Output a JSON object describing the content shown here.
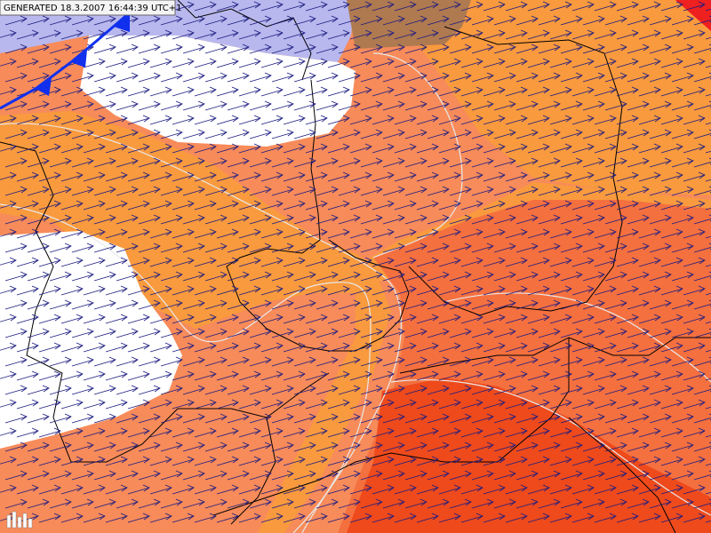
{
  "header": {
    "generated": "GENERATED 18.3.2007 16:44:39 UTC+1"
  }
}
